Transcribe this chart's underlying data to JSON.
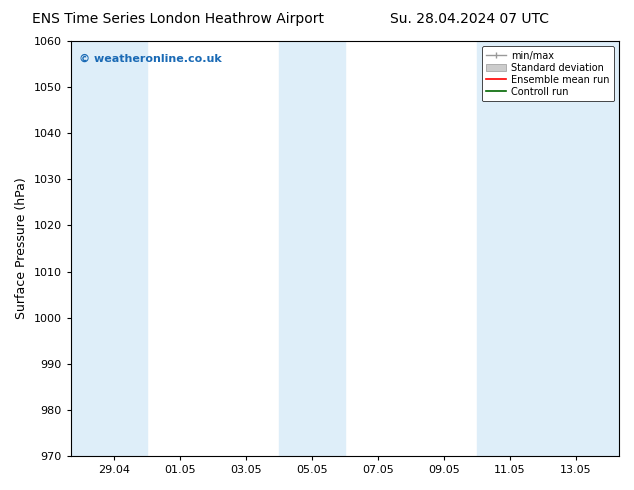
{
  "title_left": "ENS Time Series London Heathrow Airport",
  "title_right": "Su. 28.04.2024 07 UTC",
  "ylabel": "Surface Pressure (hPa)",
  "ylim": [
    970,
    1060
  ],
  "yticks": [
    970,
    980,
    990,
    1000,
    1010,
    1020,
    1030,
    1040,
    1050,
    1060
  ],
  "xtick_labels": [
    "29.04",
    "01.05",
    "03.05",
    "05.05",
    "07.05",
    "09.05",
    "11.05",
    "13.05"
  ],
  "xtick_positions": [
    1,
    3,
    5,
    7,
    9,
    11,
    13,
    15
  ],
  "xlim": [
    -0.3,
    16.3
  ],
  "shaded_bands": [
    {
      "x_start": -0.3,
      "x_end": 2.0,
      "color": "#deeef9"
    },
    {
      "x_start": 6.0,
      "x_end": 8.0,
      "color": "#deeef9"
    },
    {
      "x_start": 12.0,
      "x_end": 16.3,
      "color": "#deeef9"
    }
  ],
  "watermark_text": "© weatheronline.co.uk",
  "watermark_color": "#1a6ab5",
  "legend_entries": [
    {
      "label": "min/max",
      "color": "#aaaaaa"
    },
    {
      "label": "Standard deviation",
      "color": "#cccccc"
    },
    {
      "label": "Ensemble mean run",
      "color": "#ff0000"
    },
    {
      "label": "Controll run",
      "color": "#006600"
    }
  ],
  "bg_color": "#ffffff",
  "plot_bg_color": "#ffffff",
  "tick_color": "#000000",
  "title_fontsize": 10,
  "tick_fontsize": 8,
  "ylabel_fontsize": 9,
  "watermark_fontsize": 8,
  "legend_fontsize": 7
}
